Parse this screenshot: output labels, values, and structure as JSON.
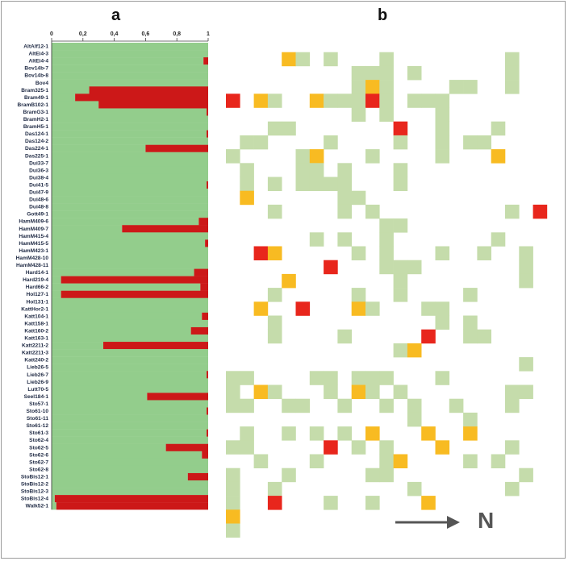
{
  "panels": {
    "a": "a",
    "b": "b"
  },
  "arrow_label": "N",
  "colors": {
    "green": "#93cd8c",
    "red": "#cc1818",
    "light_green": "#c5dcab",
    "orange": "#f8bb22",
    "red_cell": "#e8261c",
    "arrow": "#555555"
  },
  "chart_data": [
    {
      "type": "bar",
      "orientation": "horizontal",
      "stacked": true,
      "xlim": [
        0,
        1
      ],
      "x_ticks": [
        "0",
        "0,2",
        "0,4",
        "0,6",
        "0,8",
        "1"
      ],
      "categories": [
        "AltAlf12-1",
        "AltEi4-3",
        "AltEi4-4",
        "Bov14b-7",
        "Bov14b-8",
        "Bov4",
        "Bram325-1",
        "Bram49-1",
        "BramB102-1",
        "BramG3-1",
        "BramH2-1",
        "BramH5-1",
        "Das124-1",
        "Das124-2",
        "Das224-1",
        "Das225-1",
        "Dui33-7",
        "Dui36-3",
        "Dui38-4",
        "Dui41-5",
        "Dui47-9",
        "Dui48-6",
        "Dui48-8",
        "Gott49-1",
        "HamM409-6",
        "HamM409-7",
        "HamM415-4",
        "HamM415-5",
        "HamM423-1",
        "HamM428-10",
        "HamM428-11",
        "Hard14-1",
        "Hard219-4",
        "Hard66-2",
        "Hol127-1",
        "Hol131-1",
        "KattHor2-1",
        "Katt104-1",
        "Katt158-1",
        "Katt160-2",
        "Katt163-1",
        "Katt2211-2",
        "Katt2211-3",
        "Katt240-2",
        "Lieb26-5",
        "Lieb26-7",
        "Lieb26-9",
        "Lutt70-5",
        "Seel184-1",
        "Sto57-1",
        "Sto61-10",
        "Sto61-11",
        "Sto61-12",
        "Sto61-3",
        "Sto62-4",
        "Sto62-5",
        "Sto62-6",
        "Sto62-7",
        "Sto62-8",
        "StoBis12-1",
        "StoBis12-2",
        "StoBis12-3",
        "StoBis12-4",
        "Walk52-1"
      ],
      "series": [
        {
          "color": "#93cd8c",
          "values": [
            1,
            1,
            0.97,
            1,
            1,
            1,
            0.24,
            0.15,
            0.3,
            0.99,
            1,
            1,
            0.99,
            1,
            0.6,
            1,
            1,
            1,
            1,
            0.99,
            1,
            1,
            1,
            1,
            0.94,
            0.45,
            1,
            0.98,
            1,
            1,
            1,
            0.91,
            0.06,
            0.95,
            0.06,
            1,
            1,
            0.96,
            1,
            0.89,
            1,
            0.33,
            1,
            1,
            1,
            0.99,
            1,
            1,
            0.61,
            1,
            0.99,
            1,
            1,
            0.99,
            1,
            0.73,
            0.96,
            1,
            1,
            0.87,
            1,
            1,
            0.02,
            0.03
          ]
        },
        {
          "color": "#cc1818",
          "values": [
            0,
            0,
            0.03,
            0,
            0,
            0,
            0.76,
            0.85,
            0.7,
            0.01,
            0,
            0,
            0.01,
            0,
            0.4,
            0,
            0,
            0,
            0,
            0.01,
            0,
            0,
            0,
            0,
            0.06,
            0.55,
            0,
            0.02,
            0,
            0,
            0,
            0.09,
            0.94,
            0.05,
            0.94,
            0,
            0,
            0.04,
            0,
            0.11,
            0,
            0.67,
            0,
            0,
            0,
            0.01,
            0,
            0,
            0.39,
            0,
            0.01,
            0,
            0,
            0.01,
            0,
            0.27,
            0.04,
            0,
            0,
            0.13,
            0,
            0,
            0.98,
            0.97
          ]
        }
      ]
    },
    {
      "type": "heatmap",
      "grid_cols": 23,
      "grid_rows": 36,
      "value_legend": {
        "1": "light green",
        "2": "orange",
        "3": "red"
      },
      "cells": [
        [
          1,
          4,
          2
        ],
        [
          1,
          5,
          1
        ],
        [
          1,
          7,
          1
        ],
        [
          1,
          11,
          1
        ],
        [
          1,
          20,
          1
        ],
        [
          2,
          9,
          1
        ],
        [
          2,
          10,
          1
        ],
        [
          2,
          11,
          1
        ],
        [
          2,
          13,
          1
        ],
        [
          2,
          20,
          1
        ],
        [
          3,
          9,
          1
        ],
        [
          3,
          10,
          2
        ],
        [
          3,
          11,
          1
        ],
        [
          3,
          16,
          1
        ],
        [
          3,
          17,
          1
        ],
        [
          3,
          20,
          1
        ],
        [
          4,
          0,
          3
        ],
        [
          4,
          2,
          2
        ],
        [
          4,
          3,
          1
        ],
        [
          4,
          6,
          2
        ],
        [
          4,
          7,
          1
        ],
        [
          4,
          8,
          1
        ],
        [
          4,
          9,
          1
        ],
        [
          4,
          10,
          3
        ],
        [
          4,
          11,
          1
        ],
        [
          4,
          13,
          1
        ],
        [
          4,
          14,
          1
        ],
        [
          4,
          15,
          1
        ],
        [
          5,
          9,
          1
        ],
        [
          5,
          11,
          1
        ],
        [
          5,
          15,
          1
        ],
        [
          6,
          3,
          1
        ],
        [
          6,
          4,
          1
        ],
        [
          6,
          12,
          3
        ],
        [
          6,
          15,
          1
        ],
        [
          6,
          19,
          1
        ],
        [
          7,
          1,
          1
        ],
        [
          7,
          2,
          1
        ],
        [
          7,
          7,
          1
        ],
        [
          7,
          12,
          1
        ],
        [
          7,
          15,
          1
        ],
        [
          7,
          17,
          1
        ],
        [
          7,
          18,
          1
        ],
        [
          8,
          0,
          1
        ],
        [
          8,
          5,
          1
        ],
        [
          8,
          6,
          2
        ],
        [
          8,
          10,
          1
        ],
        [
          8,
          15,
          1
        ],
        [
          8,
          19,
          2
        ],
        [
          9,
          1,
          1
        ],
        [
          9,
          5,
          1
        ],
        [
          9,
          6,
          1
        ],
        [
          9,
          8,
          1
        ],
        [
          9,
          12,
          1
        ],
        [
          10,
          1,
          1
        ],
        [
          10,
          3,
          1
        ],
        [
          10,
          5,
          1
        ],
        [
          10,
          6,
          1
        ],
        [
          10,
          7,
          1
        ],
        [
          10,
          8,
          1
        ],
        [
          10,
          12,
          1
        ],
        [
          11,
          1,
          2
        ],
        [
          11,
          8,
          1
        ],
        [
          11,
          9,
          1
        ],
        [
          12,
          3,
          1
        ],
        [
          12,
          8,
          1
        ],
        [
          12,
          10,
          1
        ],
        [
          12,
          20,
          1
        ],
        [
          12,
          22,
          3
        ],
        [
          13,
          11,
          1
        ],
        [
          13,
          12,
          1
        ],
        [
          14,
          6,
          1
        ],
        [
          14,
          8,
          1
        ],
        [
          14,
          11,
          1
        ],
        [
          14,
          19,
          1
        ],
        [
          15,
          2,
          3
        ],
        [
          15,
          3,
          2
        ],
        [
          15,
          9,
          1
        ],
        [
          15,
          11,
          1
        ],
        [
          15,
          15,
          1
        ],
        [
          15,
          18,
          1
        ],
        [
          15,
          21,
          1
        ],
        [
          16,
          7,
          3
        ],
        [
          16,
          11,
          1
        ],
        [
          16,
          12,
          1
        ],
        [
          16,
          13,
          1
        ],
        [
          16,
          21,
          1
        ],
        [
          17,
          4,
          2
        ],
        [
          17,
          12,
          1
        ],
        [
          17,
          21,
          1
        ],
        [
          18,
          3,
          1
        ],
        [
          18,
          9,
          1
        ],
        [
          18,
          12,
          1
        ],
        [
          18,
          17,
          1
        ],
        [
          19,
          2,
          2
        ],
        [
          19,
          5,
          3
        ],
        [
          19,
          9,
          2
        ],
        [
          19,
          10,
          1
        ],
        [
          19,
          14,
          1
        ],
        [
          19,
          15,
          1
        ],
        [
          20,
          3,
          1
        ],
        [
          20,
          15,
          1
        ],
        [
          20,
          17,
          1
        ],
        [
          21,
          3,
          1
        ],
        [
          21,
          8,
          1
        ],
        [
          21,
          14,
          3
        ],
        [
          21,
          17,
          1
        ],
        [
          21,
          18,
          1
        ],
        [
          22,
          12,
          1
        ],
        [
          22,
          13,
          2
        ],
        [
          23,
          21,
          1
        ],
        [
          24,
          0,
          1
        ],
        [
          24,
          1,
          1
        ],
        [
          24,
          6,
          1
        ],
        [
          24,
          7,
          1
        ],
        [
          24,
          9,
          1
        ],
        [
          24,
          10,
          1
        ],
        [
          24,
          11,
          1
        ],
        [
          24,
          15,
          1
        ],
        [
          25,
          0,
          1
        ],
        [
          25,
          2,
          2
        ],
        [
          25,
          3,
          1
        ],
        [
          25,
          7,
          1
        ],
        [
          25,
          9,
          2
        ],
        [
          25,
          10,
          1
        ],
        [
          25,
          12,
          1
        ],
        [
          25,
          20,
          1
        ],
        [
          25,
          21,
          1
        ],
        [
          26,
          0,
          1
        ],
        [
          26,
          1,
          1
        ],
        [
          26,
          4,
          1
        ],
        [
          26,
          5,
          1
        ],
        [
          26,
          8,
          1
        ],
        [
          26,
          11,
          1
        ],
        [
          26,
          13,
          1
        ],
        [
          26,
          16,
          1
        ],
        [
          26,
          20,
          1
        ],
        [
          27,
          13,
          1
        ],
        [
          27,
          17,
          1
        ],
        [
          28,
          1,
          1
        ],
        [
          28,
          4,
          1
        ],
        [
          28,
          6,
          1
        ],
        [
          28,
          8,
          1
        ],
        [
          28,
          10,
          2
        ],
        [
          28,
          14,
          2
        ],
        [
          28,
          17,
          2
        ],
        [
          29,
          0,
          1
        ],
        [
          29,
          1,
          1
        ],
        [
          29,
          7,
          3
        ],
        [
          29,
          9,
          1
        ],
        [
          29,
          11,
          1
        ],
        [
          29,
          15,
          2
        ],
        [
          29,
          20,
          1
        ],
        [
          30,
          2,
          1
        ],
        [
          30,
          6,
          1
        ],
        [
          30,
          11,
          1
        ],
        [
          30,
          12,
          2
        ],
        [
          30,
          17,
          1
        ],
        [
          30,
          19,
          1
        ],
        [
          31,
          0,
          1
        ],
        [
          31,
          4,
          1
        ],
        [
          31,
          10,
          1
        ],
        [
          31,
          11,
          1
        ],
        [
          31,
          21,
          1
        ],
        [
          32,
          0,
          1
        ],
        [
          32,
          3,
          1
        ],
        [
          32,
          13,
          1
        ],
        [
          32,
          20,
          1
        ],
        [
          33,
          0,
          1
        ],
        [
          33,
          3,
          3
        ],
        [
          33,
          7,
          1
        ],
        [
          33,
          10,
          1
        ],
        [
          33,
          14,
          2
        ],
        [
          34,
          0,
          2
        ],
        [
          35,
          0,
          1
        ]
      ]
    }
  ]
}
